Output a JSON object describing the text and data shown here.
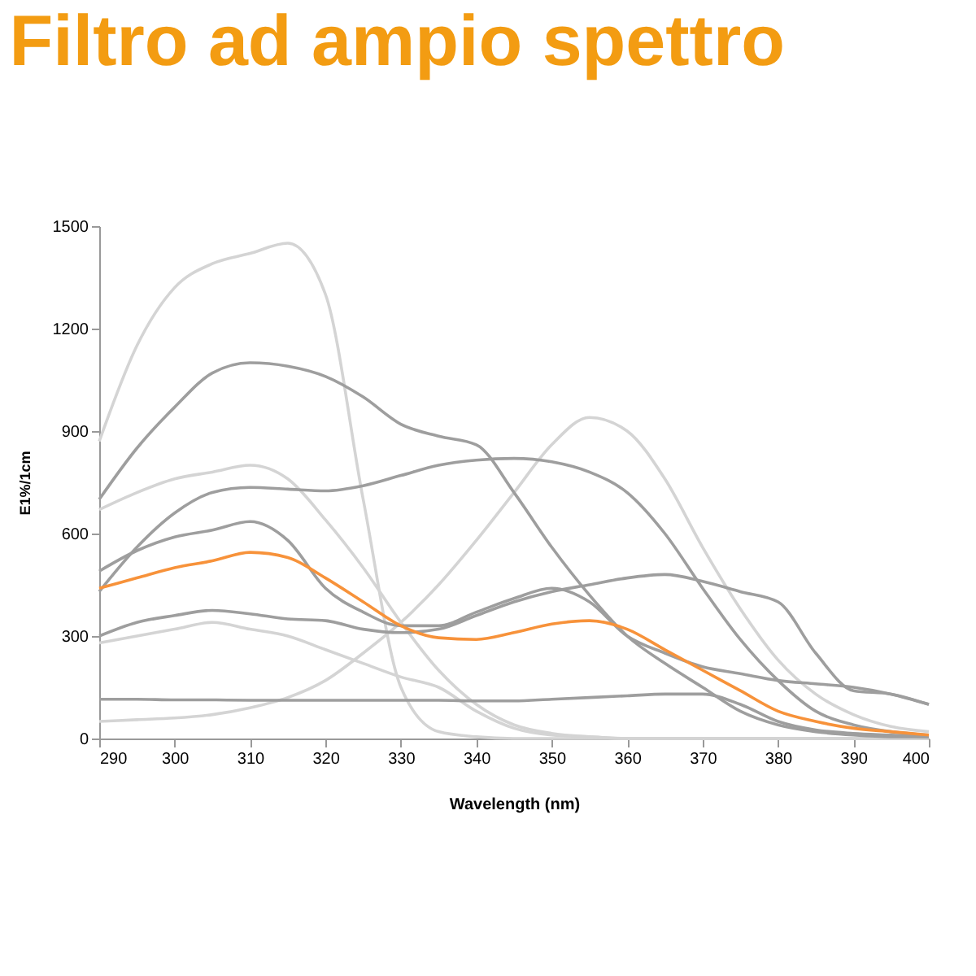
{
  "chart_data": {
    "type": "line",
    "title": "Filtro ad ampio spettro",
    "xlabel": "Wavelength (nm)",
    "ylabel": "E1%/1cm",
    "x": [
      290,
      295,
      300,
      305,
      310,
      315,
      320,
      325,
      330,
      335,
      340,
      345,
      350,
      355,
      360,
      365,
      370,
      375,
      380,
      385,
      390,
      395,
      400
    ],
    "series": [
      {
        "color": "#d4d4d4",
        "values": [
          870,
          1150,
          1320,
          1390,
          1420,
          1450,
          1300,
          700,
          150,
          20,
          5,
          0,
          0,
          0,
          0,
          0,
          0,
          0,
          0,
          0,
          0,
          0,
          0
        ]
      },
      {
        "color": "#d4d4d4",
        "values": [
          50,
          55,
          60,
          70,
          90,
          120,
          170,
          250,
          340,
          450,
          580,
          720,
          860,
          940,
          900,
          760,
          560,
          380,
          230,
          130,
          70,
          35,
          20
        ]
      },
      {
        "color": "#d4d4d4",
        "values": [
          670,
          720,
          760,
          780,
          800,
          760,
          640,
          500,
          340,
          200,
          100,
          40,
          15,
          5,
          0,
          0,
          0,
          0,
          0,
          0,
          0,
          0,
          0
        ]
      },
      {
        "color": "#d4d4d4",
        "values": [
          280,
          300,
          320,
          340,
          320,
          300,
          260,
          220,
          180,
          150,
          80,
          30,
          10,
          5,
          0,
          0,
          0,
          0,
          0,
          0,
          0,
          0,
          0
        ]
      },
      {
        "color": "#9e9e9e",
        "values": [
          700,
          850,
          970,
          1070,
          1100,
          1090,
          1060,
          1000,
          920,
          885,
          860,
          720,
          560,
          420,
          300,
          220,
          150,
          80,
          40,
          20,
          10,
          5,
          5
        ]
      },
      {
        "color": "#9e9e9e",
        "values": [
          430,
          560,
          660,
          720,
          735,
          730,
          725,
          740,
          770,
          800,
          815,
          820,
          810,
          780,
          720,
          600,
          440,
          290,
          170,
          80,
          40,
          20,
          10
        ]
      },
      {
        "color": "#9e9e9e",
        "values": [
          490,
          550,
          590,
          610,
          635,
          580,
          440,
          370,
          330,
          330,
          370,
          410,
          440,
          400,
          300,
          250,
          210,
          190,
          170,
          160,
          150,
          130,
          100
        ]
      },
      {
        "color": "#9e9e9e",
        "values": [
          300,
          340,
          360,
          375,
          365,
          350,
          345,
          320,
          310,
          320,
          360,
          400,
          430,
          450,
          470,
          480,
          460,
          430,
          400,
          250,
          140,
          130,
          100
        ]
      },
      {
        "color": "#9e9e9e",
        "values": [
          115,
          115,
          113,
          113,
          112,
          112,
          112,
          112,
          112,
          112,
          110,
          110,
          115,
          120,
          125,
          130,
          130,
          100,
          50,
          25,
          15,
          10,
          5
        ]
      },
      {
        "color": "#f7923a",
        "values": [
          440,
          470,
          500,
          520,
          545,
          530,
          470,
          400,
          330,
          295,
          290,
          310,
          335,
          345,
          320,
          260,
          200,
          140,
          80,
          50,
          30,
          20,
          10
        ]
      }
    ],
    "xlim": [
      290,
      400
    ],
    "xticks": [
      290,
      300,
      310,
      320,
      330,
      340,
      350,
      360,
      370,
      380,
      390,
      400
    ],
    "ylim": [
      0,
      1500
    ],
    "yticks": [
      0,
      300,
      600,
      900,
      1200,
      1500
    ],
    "grid": false,
    "legend": false,
    "line_style": "solid",
    "marker": "none"
  }
}
